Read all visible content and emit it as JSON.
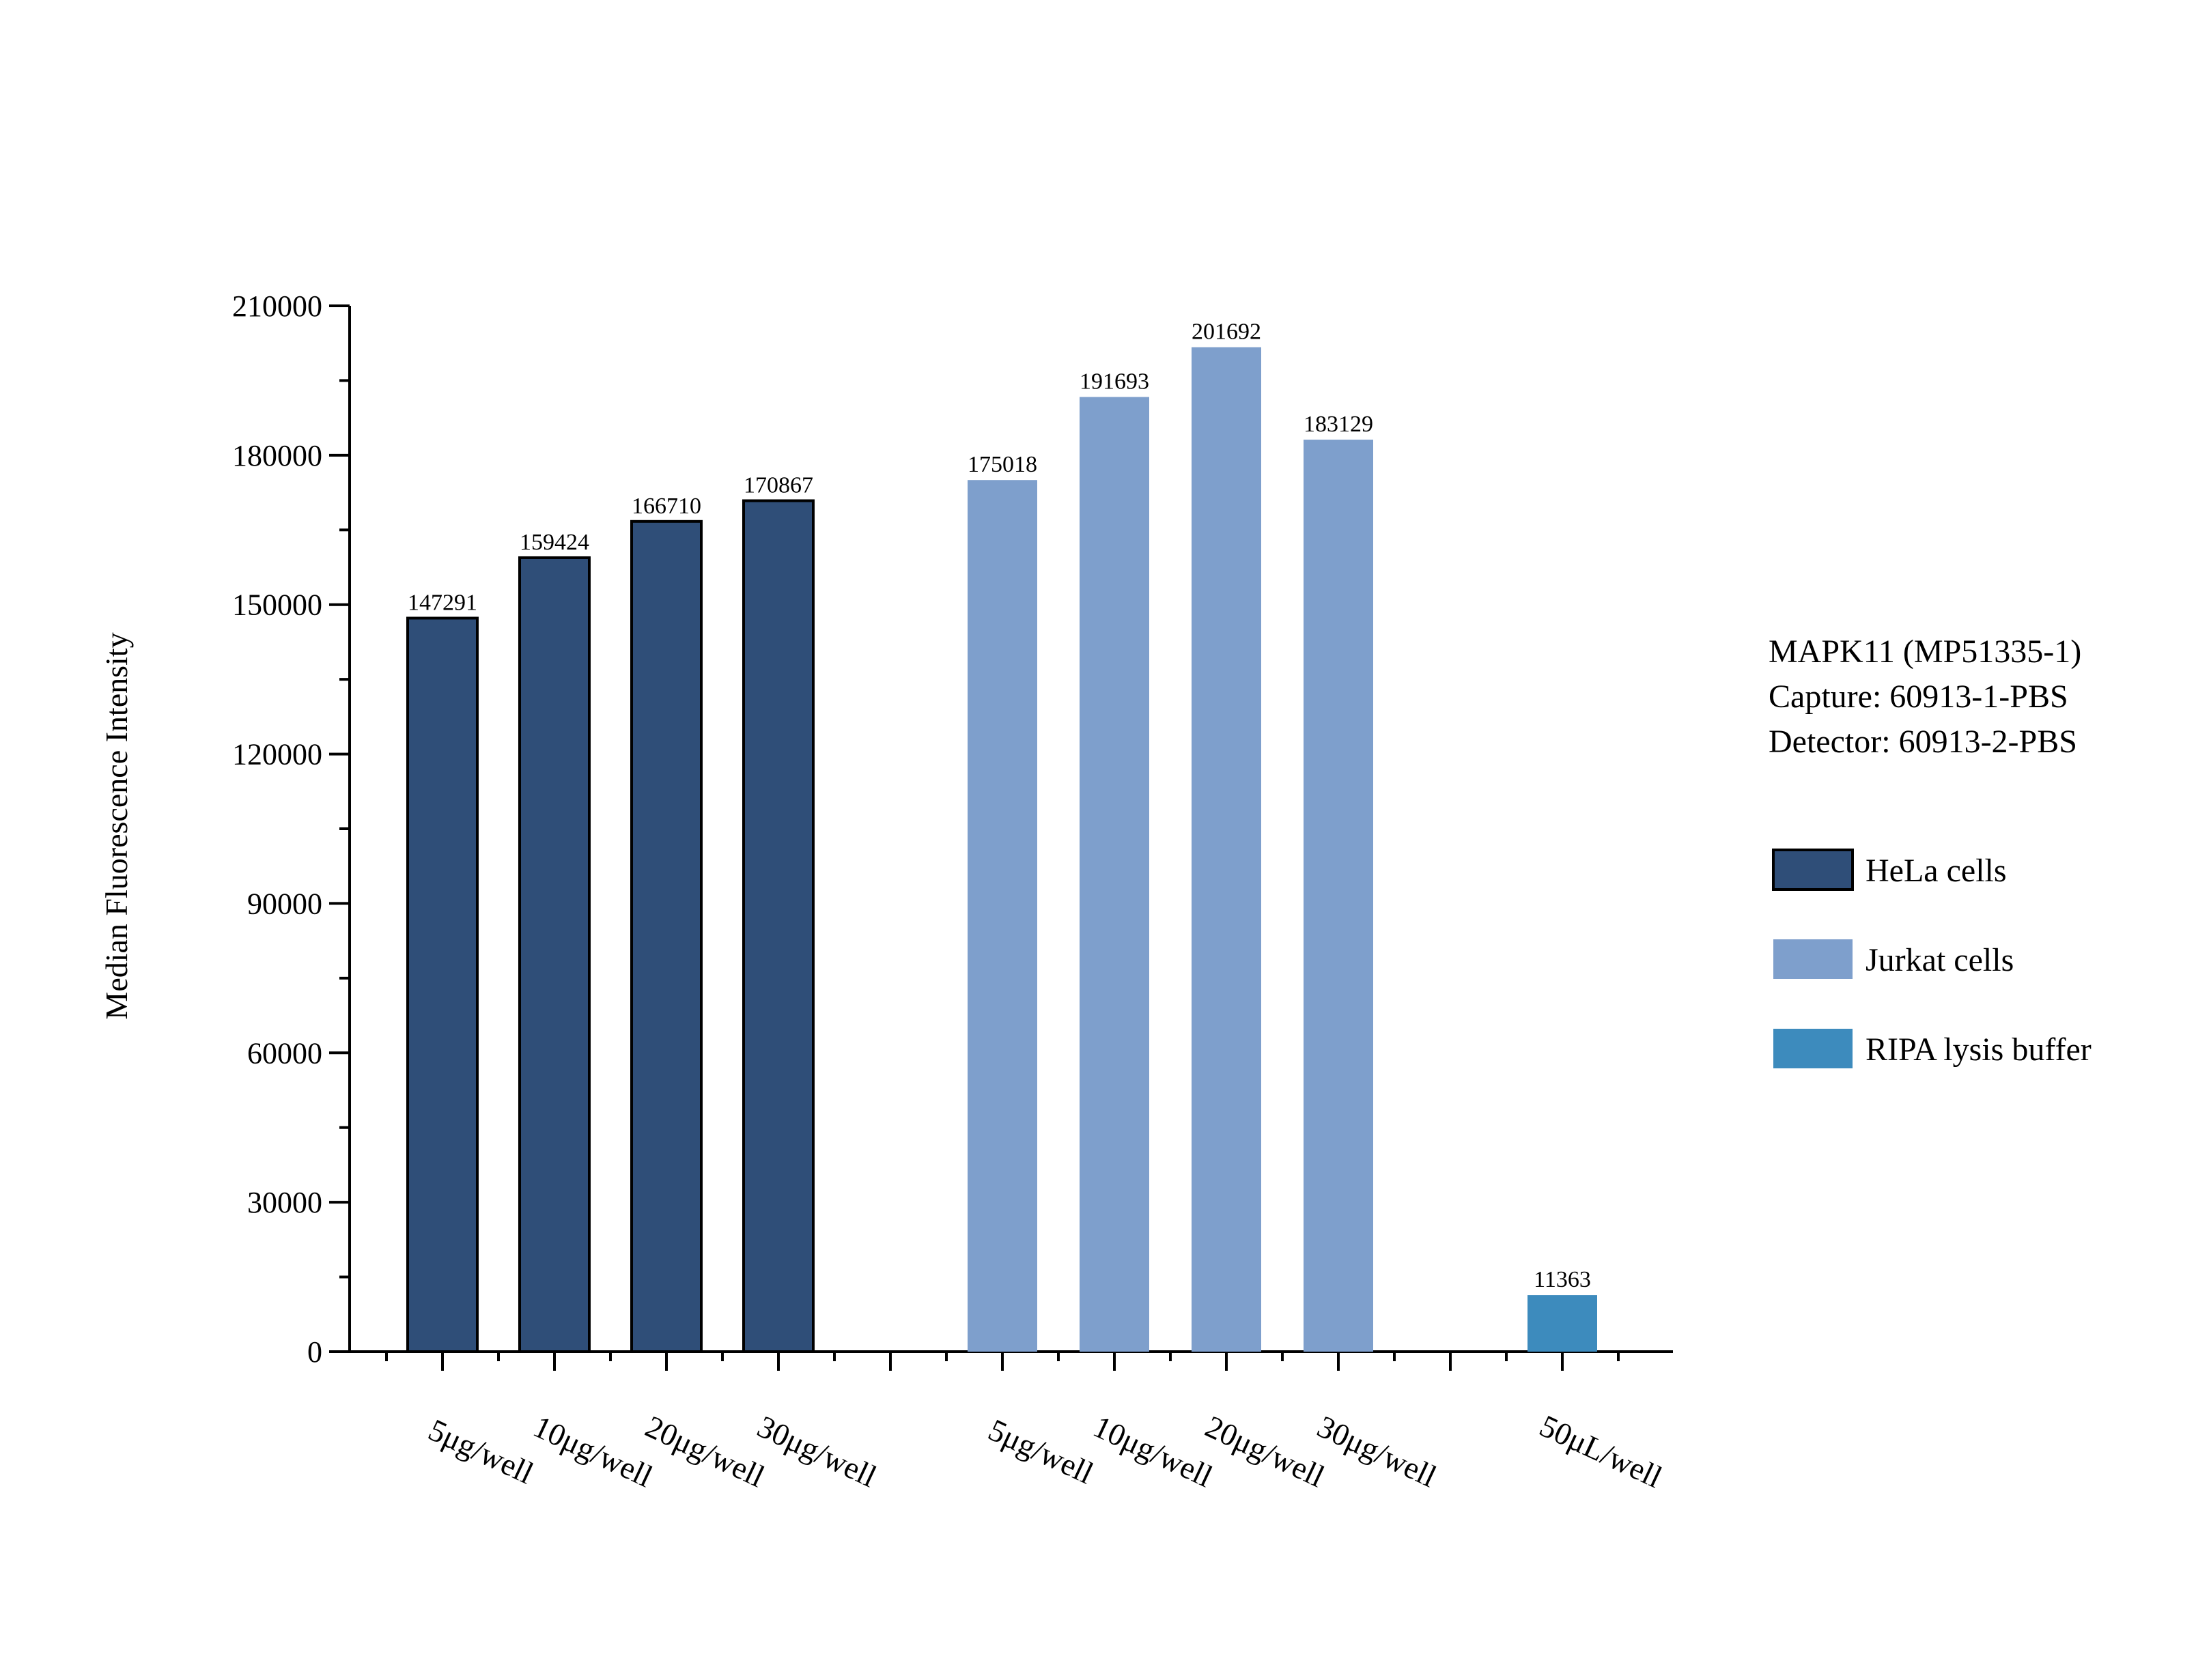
{
  "chart_data": {
    "type": "bar",
    "ylabel": "Median Fluorescence Intensity",
    "ylim": [
      0,
      210000
    ],
    "yticks": [
      0,
      30000,
      60000,
      90000,
      120000,
      150000,
      180000,
      210000
    ],
    "grid": false,
    "legend_position": "right",
    "info_lines": [
      "MAPK11 (MP51335-1)",
      "Capture: 60913-1-PBS",
      "Detector: 60913-2-PBS"
    ],
    "series": [
      {
        "name": "HeLa cells",
        "color": "#2f4e78",
        "outlined": true,
        "categories": [
          "5μg/well",
          "10μg/well",
          "20μg/well",
          "30μg/well"
        ],
        "values": [
          147291,
          159424,
          166710,
          170867
        ],
        "labels": [
          "147291",
          "159424",
          "166710",
          "170867"
        ]
      },
      {
        "name": "Jurkat cells",
        "color": "#7e9fcc",
        "outlined": false,
        "categories": [
          "5μg/well",
          "10μg/well",
          "20μg/well",
          "30μg/well"
        ],
        "values": [
          175018,
          191693,
          201692,
          183129
        ],
        "labels": [
          "175018",
          "191693",
          "201692",
          "183129"
        ]
      },
      {
        "name": "RIPA lysis buffer",
        "color": "#3d8bbd",
        "outlined": false,
        "categories": [
          "50μL/well"
        ],
        "values": [
          11363
        ],
        "labels": [
          "11363"
        ]
      }
    ]
  }
}
